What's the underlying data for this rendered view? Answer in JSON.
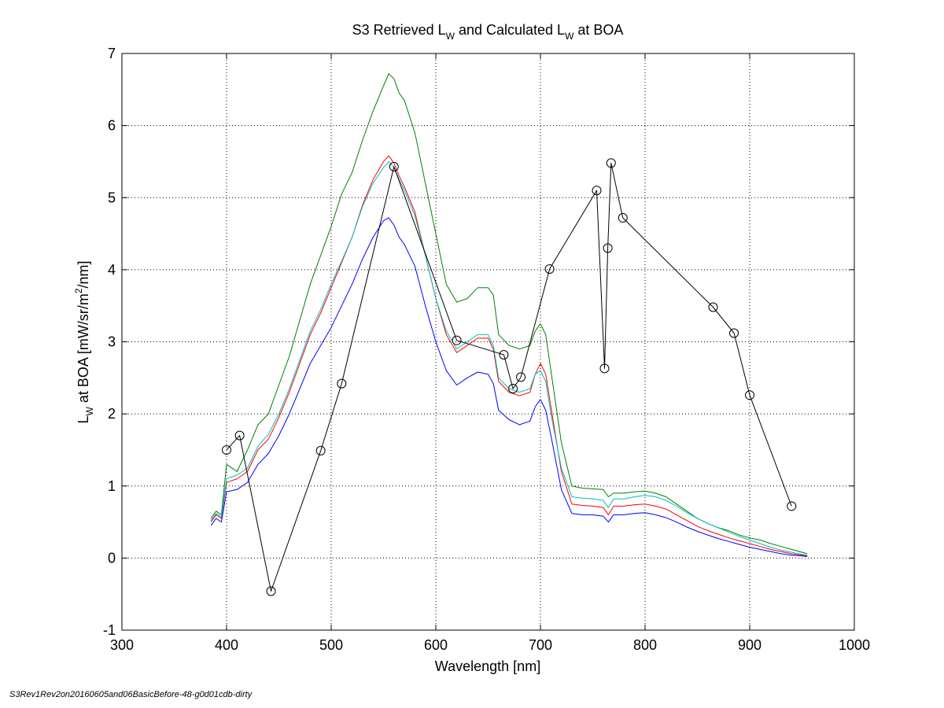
{
  "chart_data": {
    "type": "line",
    "title_main": "S3 Retrieved L",
    "title_sub1": "W",
    "title_mid": " and Calculated L",
    "title_sub2": "W",
    "title_end": " at BOA",
    "xlabel": "Wavelength [nm]",
    "ylabel_main": "L",
    "ylabel_sub": "W",
    "ylabel_mid": " at BOA [mW/sr/m",
    "ylabel_sup": "2",
    "ylabel_end": "/nm]",
    "xlim": [
      300,
      1000
    ],
    "ylim": [
      -1,
      7
    ],
    "xticks": [
      300,
      400,
      500,
      600,
      700,
      800,
      900,
      1000
    ],
    "yticks": [
      -1,
      0,
      1,
      2,
      3,
      4,
      5,
      6,
      7
    ],
    "grid": true,
    "series": [
      {
        "color": "#008000",
        "x": [
          385,
          390,
          395,
          400,
          410,
          420,
          430,
          440,
          450,
          460,
          470,
          480,
          490,
          500,
          510,
          520,
          530,
          540,
          550,
          555,
          560,
          565,
          570,
          580,
          590,
          600,
          610,
          620,
          630,
          640,
          650,
          655,
          660,
          670,
          680,
          690,
          695,
          700,
          705,
          710,
          720,
          730,
          740,
          750,
          760,
          765,
          770,
          780,
          790,
          800,
          810,
          820,
          830,
          840,
          850,
          860,
          870,
          880,
          890,
          900,
          910,
          920,
          930,
          940,
          950,
          955
        ],
        "y": [
          0.55,
          0.65,
          0.6,
          1.3,
          1.2,
          1.5,
          1.85,
          2.0,
          2.4,
          2.8,
          3.3,
          3.8,
          4.2,
          4.6,
          5.05,
          5.35,
          5.8,
          6.2,
          6.55,
          6.72,
          6.65,
          6.45,
          6.35,
          5.9,
          5.2,
          4.5,
          3.8,
          3.55,
          3.6,
          3.75,
          3.75,
          3.65,
          3.1,
          2.95,
          2.9,
          2.95,
          3.15,
          3.25,
          3.1,
          2.6,
          1.6,
          1.0,
          0.97,
          0.96,
          0.95,
          0.85,
          0.9,
          0.9,
          0.92,
          0.93,
          0.9,
          0.85,
          0.75,
          0.65,
          0.55,
          0.48,
          0.42,
          0.38,
          0.32,
          0.28,
          0.25,
          0.2,
          0.16,
          0.12,
          0.08,
          0.06
        ]
      },
      {
        "color": "#ff0000",
        "x": [
          385,
          390,
          395,
          400,
          410,
          420,
          430,
          440,
          450,
          460,
          470,
          480,
          490,
          500,
          510,
          520,
          530,
          540,
          550,
          555,
          560,
          565,
          570,
          580,
          590,
          600,
          610,
          620,
          630,
          640,
          650,
          655,
          660,
          670,
          680,
          690,
          695,
          700,
          705,
          710,
          720,
          730,
          740,
          750,
          760,
          765,
          770,
          780,
          790,
          800,
          810,
          820,
          830,
          840,
          850,
          860,
          870,
          880,
          890,
          900,
          910,
          920,
          930,
          940,
          950,
          955
        ],
        "y": [
          0.5,
          0.6,
          0.55,
          1.05,
          1.1,
          1.2,
          1.5,
          1.65,
          1.95,
          2.3,
          2.7,
          3.1,
          3.4,
          3.75,
          4.1,
          4.45,
          4.9,
          5.25,
          5.5,
          5.58,
          5.48,
          5.3,
          5.15,
          4.8,
          4.2,
          3.6,
          3.1,
          2.85,
          2.95,
          3.05,
          3.05,
          2.9,
          2.45,
          2.3,
          2.25,
          2.3,
          2.55,
          2.7,
          2.55,
          2.1,
          1.2,
          0.75,
          0.73,
          0.72,
          0.7,
          0.6,
          0.72,
          0.72,
          0.74,
          0.75,
          0.72,
          0.68,
          0.6,
          0.52,
          0.44,
          0.38,
          0.33,
          0.28,
          0.24,
          0.2,
          0.16,
          0.12,
          0.09,
          0.06,
          0.04,
          0.03
        ]
      },
      {
        "color": "#00bfbf",
        "x": [
          385,
          390,
          395,
          400,
          410,
          420,
          430,
          440,
          450,
          460,
          470,
          480,
          490,
          500,
          510,
          520,
          530,
          540,
          550,
          555,
          560,
          565,
          570,
          580,
          590,
          600,
          610,
          620,
          630,
          640,
          650,
          655,
          660,
          670,
          680,
          690,
          695,
          700,
          705,
          710,
          720,
          730,
          740,
          750,
          760,
          765,
          770,
          780,
          790,
          800,
          810,
          820,
          830,
          840,
          850,
          860,
          870,
          880,
          890,
          900,
          910,
          920,
          930,
          940,
          950,
          955
        ],
        "y": [
          0.52,
          0.62,
          0.57,
          1.1,
          1.15,
          1.25,
          1.55,
          1.72,
          2.0,
          2.35,
          2.75,
          3.15,
          3.45,
          3.8,
          4.12,
          4.45,
          4.88,
          5.2,
          5.42,
          5.5,
          5.42,
          5.25,
          5.1,
          4.75,
          4.2,
          3.6,
          3.15,
          2.9,
          3.0,
          3.1,
          3.1,
          2.95,
          2.5,
          2.35,
          2.3,
          2.35,
          2.55,
          2.6,
          2.45,
          2.0,
          1.25,
          0.85,
          0.83,
          0.82,
          0.8,
          0.7,
          0.82,
          0.82,
          0.85,
          0.87,
          0.85,
          0.8,
          0.72,
          0.63,
          0.55,
          0.48,
          0.42,
          0.36,
          0.3,
          0.25,
          0.2,
          0.15,
          0.11,
          0.08,
          0.05,
          0.04
        ]
      },
      {
        "color": "#0000ff",
        "x": [
          385,
          390,
          395,
          400,
          410,
          420,
          430,
          440,
          450,
          460,
          470,
          480,
          490,
          500,
          510,
          520,
          530,
          540,
          550,
          555,
          560,
          565,
          570,
          580,
          590,
          600,
          610,
          620,
          630,
          640,
          650,
          655,
          660,
          670,
          680,
          690,
          695,
          700,
          705,
          710,
          720,
          730,
          740,
          750,
          760,
          765,
          770,
          780,
          790,
          800,
          810,
          820,
          830,
          840,
          850,
          860,
          870,
          880,
          890,
          900,
          910,
          920,
          930,
          940,
          950,
          955
        ],
        "y": [
          0.45,
          0.55,
          0.5,
          0.92,
          0.95,
          1.05,
          1.3,
          1.45,
          1.7,
          2.0,
          2.35,
          2.7,
          2.95,
          3.2,
          3.5,
          3.8,
          4.15,
          4.45,
          4.68,
          4.72,
          4.62,
          4.45,
          4.35,
          4.05,
          3.5,
          3.0,
          2.6,
          2.4,
          2.5,
          2.58,
          2.55,
          2.42,
          2.05,
          1.92,
          1.85,
          1.9,
          2.1,
          2.2,
          2.05,
          1.7,
          0.95,
          0.62,
          0.6,
          0.6,
          0.58,
          0.5,
          0.6,
          0.6,
          0.62,
          0.63,
          0.6,
          0.56,
          0.5,
          0.43,
          0.37,
          0.32,
          0.27,
          0.23,
          0.19,
          0.15,
          0.12,
          0.09,
          0.06,
          0.04,
          0.03,
          0.02
        ]
      },
      {
        "color": "#000000",
        "markers": true,
        "x": [
          400,
          412.5,
          442.5,
          490,
          510,
          560,
          620,
          665,
          673.75,
          681.25,
          708.75,
          753.75,
          761.25,
          764.375,
          767.5,
          778.75,
          865,
          885,
          900,
          940
        ],
        "y": [
          1.5,
          1.7,
          -0.46,
          1.49,
          2.42,
          5.43,
          3.02,
          2.82,
          2.35,
          2.51,
          4.01,
          5.1,
          2.63,
          4.3,
          5.48,
          4.72,
          3.48,
          3.12,
          2.26,
          0.72
        ]
      }
    ]
  },
  "footer": "S3Rev1Rev2on20160605and06BasicBefore-48-g0d01cdb-dirty"
}
